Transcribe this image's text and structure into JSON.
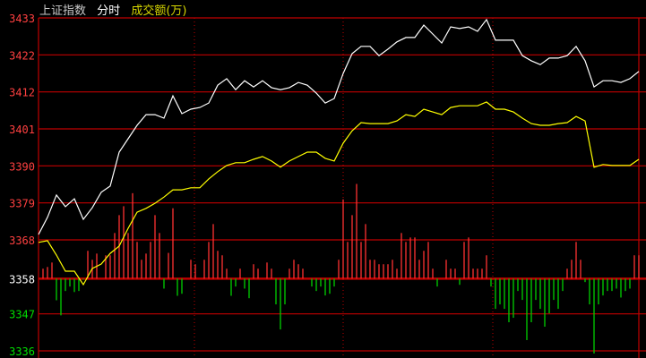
{
  "header": {
    "index_name": "上证指数",
    "mode": "分时",
    "volume_label": "成交额(万)"
  },
  "colors": {
    "background": "#000000",
    "grid": "#c00000",
    "price_line": "#ffffff",
    "average_line": "#ffff00",
    "up_bar": "#ff3232",
    "down_bar": "#00d000",
    "tick_up": "#ff4040",
    "tick_ref": "#ffffff",
    "tick_down": "#00e000"
  },
  "chart_data": {
    "type": "line",
    "title": "上证指数 分时",
    "ylim": [
      3336,
      3433
    ],
    "y_ticks": [
      3433,
      3422,
      3412,
      3401,
      3390,
      3379,
      3368,
      3358,
      3347,
      3336
    ],
    "reference_price": 3358,
    "grid": true,
    "series": [
      {
        "name": "上证指数",
        "values": [
          3369.9,
          3374.9,
          3381.4,
          3378.0,
          3380.3,
          3374.3,
          3377.7,
          3382.2,
          3384.0,
          3393.9,
          3397.8,
          3401.7,
          3404.8,
          3404.8,
          3403.8,
          3410.3,
          3405.1,
          3406.4,
          3406.9,
          3408.2,
          3413.4,
          3415.3,
          3412.1,
          3414.7,
          3412.9,
          3414.7,
          3412.7,
          3412.1,
          3412.7,
          3414.2,
          3413.4,
          3411.1,
          3408.2,
          3409.5,
          3416.8,
          3422.6,
          3424.7,
          3424.7,
          3422.0,
          3423.9,
          3426.0,
          3427.3,
          3427.3,
          3430.9,
          3428.3,
          3425.7,
          3430.4,
          3429.9,
          3430.4,
          3429.1,
          3432.5,
          3426.5,
          3426.5,
          3426.5,
          3422.0,
          3420.5,
          3419.4,
          3421.3,
          3421.3,
          3422.0,
          3424.7,
          3420.5,
          3412.9,
          3414.7,
          3414.7,
          3414.2,
          3415.3,
          3417.4
        ]
      },
      {
        "values": [
          3367.6,
          3368.1,
          3363.9,
          3359.2,
          3359.2,
          3355.3,
          3360.0,
          3361.3,
          3364.4,
          3366.5,
          3371.7,
          3376.4,
          3377.5,
          3379.0,
          3380.8,
          3382.9,
          3382.9,
          3383.5,
          3383.5,
          3386.1,
          3388.2,
          3390.0,
          3390.8,
          3390.8,
          3391.8,
          3392.6,
          3391.3,
          3389.5,
          3391.3,
          3392.6,
          3393.9,
          3393.9,
          3392.1,
          3391.3,
          3396.5,
          3400.1,
          3402.5,
          3402.2,
          3402.2,
          3402.2,
          3403.0,
          3404.8,
          3404.3,
          3406.4,
          3405.6,
          3404.8,
          3406.9,
          3407.4,
          3407.4,
          3407.4,
          3408.5,
          3406.4,
          3406.4,
          3405.6,
          3403.8,
          3402.2,
          3401.7,
          3401.7,
          3402.2,
          3402.5,
          3404.3,
          3403.0,
          3389.5,
          3390.3,
          3390.0,
          3390.0,
          3390.0,
          3391.8
        ]
      }
    ],
    "volume_bars": [
      2.9,
      3.4,
      4.7,
      -6.3,
      -10.7,
      -3.6,
      -2.3,
      -3.9,
      -3.6,
      -0.3,
      8.1,
      5.5,
      7.3,
      0,
      6.8,
      6.8,
      13.3,
      18.5,
      21.1,
      13.3,
      24.9,
      10.7,
      5.5,
      7.3,
      10.7,
      18.5,
      13.3,
      -2.9,
      7.5,
      20.5,
      -5.0,
      -4.4,
      0,
      5.5,
      4.2,
      0,
      5.5,
      10.7,
      15.9,
      8.1,
      6.8,
      2.9,
      -5.0,
      -2.3,
      2.9,
      -2.9,
      -5.7,
      4.2,
      2.9,
      0,
      4.7,
      2.9,
      -7.5,
      -14.8,
      -7.5,
      2.9,
      5.5,
      4.2,
      2.9,
      0,
      -2.3,
      -3.6,
      -2.3,
      -4.9,
      -4.4,
      -2.3,
      5.5,
      23.1,
      10.7,
      18.5,
      27.6,
      10.7,
      15.9,
      5.5,
      5.5,
      4.2,
      4.2,
      4.2,
      5.5,
      2.9,
      13.3,
      10.7,
      12.0,
      12.0,
      5.5,
      8.1,
      10.7,
      2.9,
      -2.3,
      0,
      5.5,
      2.9,
      2.9,
      -1.8,
      10.7,
      12.0,
      2.9,
      2.9,
      2.9,
      6.8,
      -2.3,
      -8.8,
      -7.5,
      -8.8,
      -12.7,
      -11.4,
      -3.6,
      -6.2,
      -17.9,
      -12.7,
      -6.2,
      -8.8,
      -14.0,
      -10.1,
      -6.2,
      -8.8,
      -3.6,
      2.9,
      5.5,
      10.7,
      5.5,
      -1.0,
      -7.5,
      -21.8,
      -7.5,
      -4.9,
      -3.6,
      -3.6,
      -2.9,
      -5.5,
      -3.6,
      -2.9,
      6.8,
      6.8
    ]
  }
}
